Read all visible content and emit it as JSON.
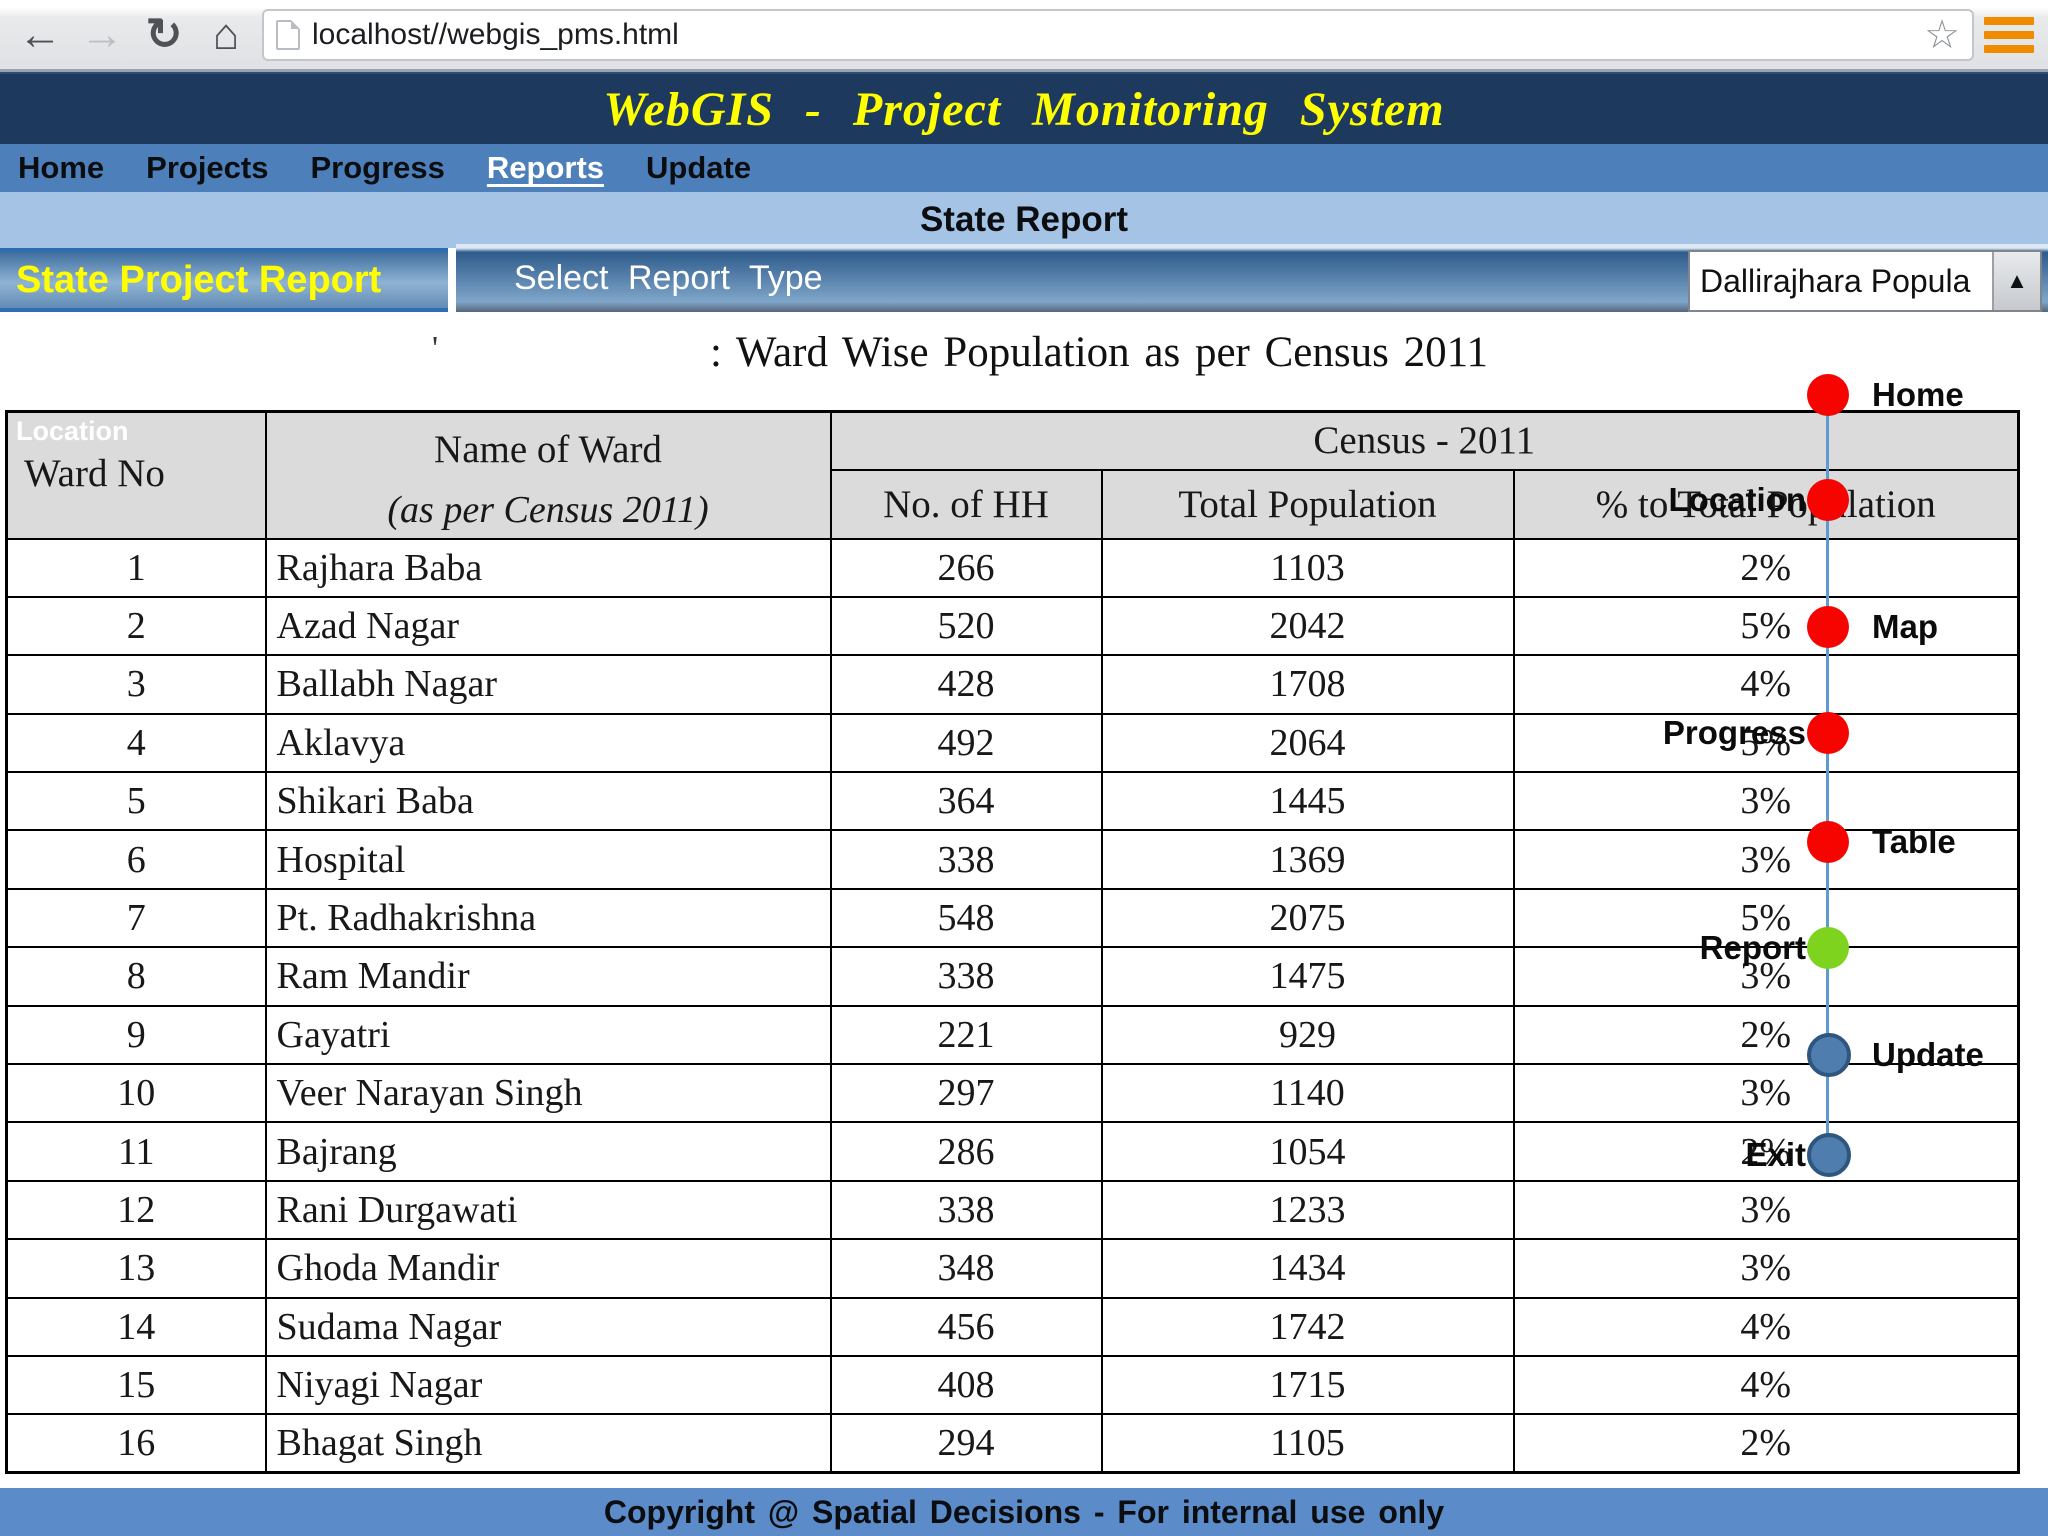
{
  "browser": {
    "url": "localhost//webgis_pms.html",
    "back_icon": "←",
    "forward_icon": "→",
    "refresh_icon": "↻",
    "home_icon": "⌂",
    "bookmark_star_icon": "☆",
    "arrow_up_icon": "▲"
  },
  "header": {
    "title": "WebGIS - Project Monitoring System"
  },
  "nav": {
    "items": [
      {
        "label": "Home",
        "active": false
      },
      {
        "label": "Projects",
        "active": false
      },
      {
        "label": "Progress",
        "active": false
      },
      {
        "label": "Reports",
        "active": true
      },
      {
        "label": "Update",
        "active": false
      }
    ]
  },
  "subheader": {
    "title": "State Report"
  },
  "report_bar": {
    "tab_label": "State Project Report",
    "select_label": "Select Report Type",
    "dropdown_value": "Dallirajhara Popula"
  },
  "content": {
    "stray_mark": "'",
    "table_title": ": Ward Wise Population as per Census 2011"
  },
  "table": {
    "header": {
      "location_overlay": "Location",
      "ward_no": "Ward No",
      "name_line1": "Name of Ward",
      "name_line2": "(as per Census 2011)",
      "census_span": "Census - 2011",
      "hh": "No. of HH",
      "total_population": "Total Population",
      "pct_total_population": "% to Total Population"
    },
    "rows": [
      [
        "1",
        "Rajhara Baba",
        "266",
        "1103",
        "2%"
      ],
      [
        "2",
        "Azad Nagar",
        "520",
        "2042",
        "5%"
      ],
      [
        "3",
        "Ballabh Nagar",
        "428",
        "1708",
        "4%"
      ],
      [
        "4",
        "Aklavya",
        "492",
        "2064",
        "5%"
      ],
      [
        "5",
        "Shikari Baba",
        "364",
        "1445",
        "3%"
      ],
      [
        "6",
        "Hospital",
        "338",
        "1369",
        "3%"
      ],
      [
        "7",
        "Pt. Radhakrishna",
        "548",
        "2075",
        "5%"
      ],
      [
        "8",
        "Ram Mandir",
        "338",
        "1475",
        "3%"
      ],
      [
        "9",
        "Gayatri",
        "221",
        "929",
        "2%"
      ],
      [
        "10",
        "Veer Narayan Singh",
        "297",
        "1140",
        "3%"
      ],
      [
        "11",
        "Bajrang",
        "286",
        "1054",
        "2%"
      ],
      [
        "12",
        "Rani Durgawati",
        "338",
        "1233",
        "3%"
      ],
      [
        "13",
        "Ghoda Mandir",
        "348",
        "1434",
        "3%"
      ],
      [
        "14",
        "Sudama Nagar",
        "456",
        "1742",
        "4%"
      ],
      [
        "15",
        "Niyagi Nagar",
        "408",
        "1715",
        "4%"
      ],
      [
        "16",
        "Bhagat Singh",
        "294",
        "1105",
        "2%"
      ]
    ]
  },
  "overlay": {
    "markers": [
      {
        "label": "Home",
        "color": "#f50400",
        "side": "right"
      },
      {
        "label": "Location",
        "color": "#f50400",
        "side": "left"
      },
      {
        "label": "Map",
        "color": "#f50400",
        "side": "right"
      },
      {
        "label": "Progress",
        "color": "#f50400",
        "side": "left"
      },
      {
        "label": "Table",
        "color": "#f50400",
        "side": "right"
      },
      {
        "label": "Report",
        "color": "#7ed31e",
        "side": "left"
      },
      {
        "label": "Update",
        "color": "#4f7dad",
        "side": "right"
      },
      {
        "label": "Exit",
        "color": "#4f7dad",
        "side": "left"
      }
    ]
  },
  "footer": {
    "text": "Copyright @ Spatial Decisions  - For internal use only"
  },
  "colors": {
    "title_text": "#ffff00",
    "navy_bar": "#1d3a5e",
    "nav_blue": "#4d80ba",
    "band_blue": "#a5c3e5",
    "footer_blue": "#5b8cc9",
    "header_gray": "#dbdbdb",
    "marker_red": "#f50400",
    "marker_green": "#7ed31e",
    "marker_blue": "#4f7dad",
    "flow_line_blue": "#5f9bd0",
    "menu_orange": "#f08b00"
  }
}
